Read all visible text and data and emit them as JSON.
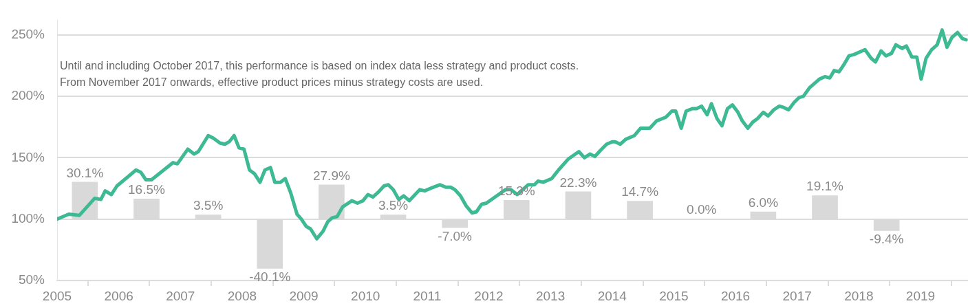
{
  "chart_data": {
    "type": "line",
    "annotations": [
      "Until and including October 2017, this performance is based on index data less strategy and product costs.",
      "From November 2017 onwards, effective product prices minus strategy costs are used."
    ],
    "xlim": [
      2005,
      2019.77
    ],
    "xticks": [
      2005,
      2006,
      2007,
      2008,
      2009,
      2010,
      2011,
      2012,
      2013,
      2014,
      2015,
      2016,
      2017,
      2018,
      2019
    ],
    "ylim": [
      50,
      262
    ],
    "yticks": [
      {
        "value": 50,
        "label": "50%"
      },
      {
        "value": 100,
        "label": "100%"
      },
      {
        "value": 150,
        "label": "150%"
      },
      {
        "value": 200,
        "label": "200%"
      },
      {
        "value": 250,
        "label": "250%"
      }
    ],
    "grid": "y",
    "marker": "none",
    "series": [
      {
        "type": "bar",
        "color": "#d9d9d9",
        "x": [
          2005.45,
          2006.45,
          2007.45,
          2008.45,
          2009.45,
          2010.45,
          2011.45,
          2012.45,
          2013.45,
          2014.45,
          2015.45,
          2016.45,
          2017.45,
          2018.45
        ],
        "base": [
          100,
          100,
          100,
          100,
          100,
          100,
          100,
          100,
          100,
          100,
          100,
          100,
          100,
          100
        ],
        "values": [
          30.1,
          16.5,
          3.5,
          -40.1,
          27.9,
          3.5,
          -7.0,
          15.3,
          22.3,
          14.7,
          0.0,
          6.0,
          19.1,
          -9.4
        ],
        "value_labels": [
          "30.1%",
          "16.5%",
          "3.5%",
          "-40.1%",
          "27.9%",
          "3.5%",
          "-7.0%",
          "15.3%",
          "22.3%",
          "14.7%",
          "0.0%",
          "6.0%",
          "19.1%",
          "-9.4%"
        ]
      },
      {
        "color": "#3dba93",
        "x": [
          2005.0,
          2005.19,
          2005.36,
          2005.45,
          2005.61,
          2005.71,
          2005.78,
          2005.88,
          2005.97,
          2006.28,
          2006.36,
          2006.44,
          2006.53,
          2006.88,
          2006.95,
          2007.12,
          2007.22,
          2007.29,
          2007.45,
          2007.53,
          2007.64,
          2007.72,
          2007.79,
          2007.87,
          2007.95,
          2008.03,
          2008.12,
          2008.2,
          2008.29,
          2008.37,
          2008.46,
          2008.53,
          2008.62,
          2008.7,
          2008.79,
          2008.89,
          2008.96,
          2009.04,
          2009.11,
          2009.21,
          2009.31,
          2009.39,
          2009.46,
          2009.54,
          2009.63,
          2009.78,
          2009.87,
          2009.96,
          2010.04,
          2010.12,
          2010.21,
          2010.3,
          2010.37,
          2010.45,
          2010.54,
          2010.62,
          2010.71,
          2010.88,
          2010.96,
          2011.1,
          2011.21,
          2011.3,
          2011.38,
          2011.45,
          2011.54,
          2011.63,
          2011.73,
          2011.8,
          2011.88,
          2011.96,
          2012.13,
          2012.27,
          2012.36,
          2012.46,
          2012.64,
          2012.74,
          2012.8,
          2012.88,
          2013.02,
          2013.13,
          2013.29,
          2013.46,
          2013.55,
          2013.64,
          2013.72,
          2013.81,
          2013.91,
          2014.0,
          2014.05,
          2014.13,
          2014.22,
          2014.36,
          2014.46,
          2014.61,
          2014.72,
          2014.87,
          2014.97,
          2015.03,
          2015.12,
          2015.2,
          2015.3,
          2015.37,
          2015.45,
          2015.54,
          2015.61,
          2015.7,
          2015.78,
          2015.87,
          2015.95,
          2016.04,
          2016.11,
          2016.2,
          2016.28,
          2016.36,
          2016.45,
          2016.53,
          2016.62,
          2016.71,
          2016.78,
          2016.86,
          2016.95,
          2017.03,
          2017.1,
          2017.2,
          2017.36,
          2017.45,
          2017.53,
          2017.6,
          2017.68,
          2017.76,
          2017.84,
          2017.92,
          2018.01,
          2018.1,
          2018.2,
          2018.27,
          2018.36,
          2018.44,
          2018.53,
          2018.6,
          2018.7,
          2018.77,
          2018.86,
          2018.94,
          2019.01,
          2019.09,
          2019.18,
          2019.27,
          2019.35,
          2019.43,
          2019.51,
          2019.6,
          2019.68,
          2019.74
        ],
        "values": [
          100,
          104,
          103,
          108,
          117,
          116,
          123,
          120,
          127,
          140,
          138,
          132,
          132,
          146,
          145,
          157,
          153,
          155,
          168,
          166,
          162,
          161,
          163,
          168,
          158,
          157,
          140,
          137,
          130,
          140,
          142,
          130,
          130,
          133,
          121,
          104,
          100,
          94,
          92,
          84,
          90,
          98,
          101,
          102,
          110,
          115,
          113,
          115,
          120,
          118,
          122,
          127,
          128,
          124,
          116,
          119,
          115,
          124,
          123,
          126,
          128,
          126,
          126,
          124,
          119,
          111,
          105,
          106,
          112,
          113,
          119,
          124,
          124,
          120,
          128,
          128,
          131,
          130,
          133,
          140,
          149,
          155,
          150,
          153,
          151,
          156,
          161,
          163,
          163,
          161,
          165,
          168,
          174,
          174,
          180,
          183,
          188,
          188,
          174,
          188,
          190,
          190,
          192,
          185,
          194,
          182,
          176,
          190,
          193,
          187,
          180,
          174,
          179,
          182,
          187,
          184,
          189,
          192,
          191,
          189,
          195,
          199,
          200,
          207,
          214,
          216,
          215,
          221,
          220,
          226,
          233,
          234,
          236,
          238,
          231,
          228,
          237,
          233,
          235,
          242,
          239,
          241,
          232,
          232,
          214,
          231,
          238,
          242,
          254,
          240,
          248,
          252,
          247,
          246
        ]
      }
    ]
  }
}
